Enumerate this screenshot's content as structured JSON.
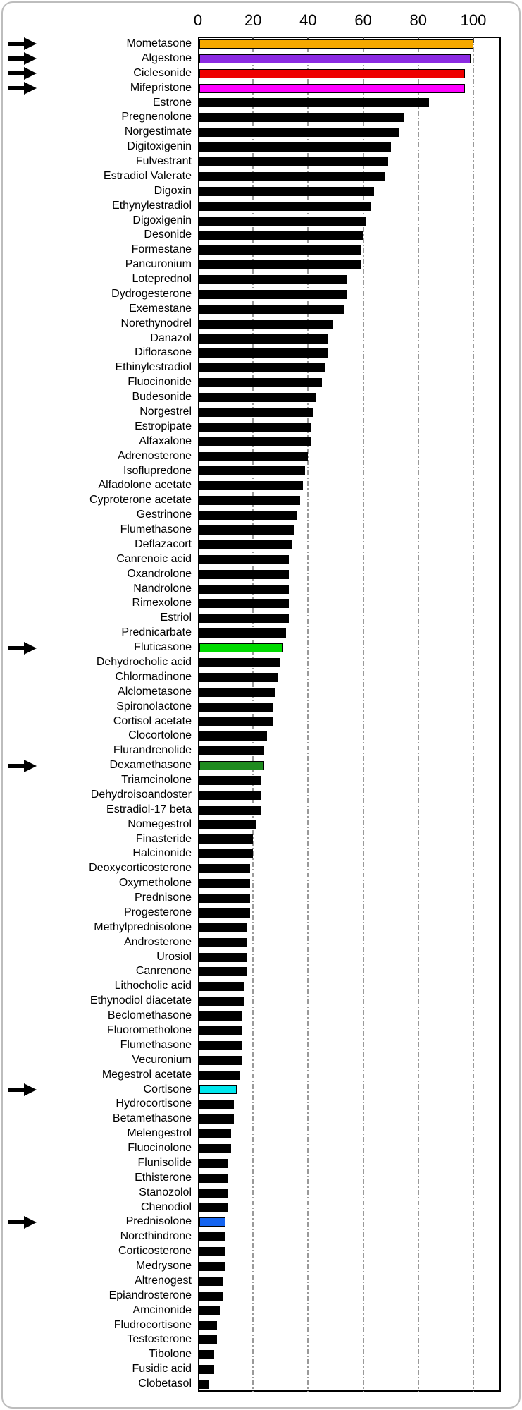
{
  "card": {
    "border_color": "#bdbdbd",
    "background": "#ffffff"
  },
  "chart_data": {
    "type": "bar",
    "orientation": "horizontal",
    "title": "",
    "xlabel": "",
    "ylabel": "",
    "x_axis": {
      "position": "top",
      "min": 0,
      "max": 110,
      "ticks": [
        0,
        20,
        40,
        60,
        80,
        100
      ],
      "gridlines": [
        20,
        40,
        60,
        80,
        100
      ],
      "grid_style": "dash-dot",
      "grid_color": "#9a9a9a"
    },
    "bar_default_color": "#000000",
    "arrow_color": "#000000",
    "highlight_note": "arrow=true rows are marked with a black arrow on the left",
    "items": [
      {
        "label": "Mometasone",
        "value": 100,
        "color": "#F5A800",
        "arrow": true
      },
      {
        "label": "Algestone",
        "value": 99,
        "color": "#8B2BE2",
        "arrow": true
      },
      {
        "label": "Ciclesonide",
        "value": 97,
        "color": "#EE0000",
        "arrow": true
      },
      {
        "label": "Mifepristone",
        "value": 97,
        "color": "#FF00FF",
        "arrow": true
      },
      {
        "label": "Estrone",
        "value": 84
      },
      {
        "label": "Pregnenolone",
        "value": 75
      },
      {
        "label": "Norgestimate",
        "value": 73
      },
      {
        "label": "Digitoxigenin",
        "value": 70
      },
      {
        "label": "Fulvestrant",
        "value": 69
      },
      {
        "label": "Estradiol Valerate",
        "value": 68
      },
      {
        "label": "Digoxin",
        "value": 64
      },
      {
        "label": "Ethynylestradiol",
        "value": 63
      },
      {
        "label": "Digoxigenin",
        "value": 61
      },
      {
        "label": "Desonide",
        "value": 60
      },
      {
        "label": "Formestane",
        "value": 59
      },
      {
        "label": "Pancuronium",
        "value": 59
      },
      {
        "label": "Loteprednol",
        "value": 54
      },
      {
        "label": "Dydrogesterone",
        "value": 54
      },
      {
        "label": "Exemestane",
        "value": 53
      },
      {
        "label": "Norethynodrel",
        "value": 49
      },
      {
        "label": "Danazol",
        "value": 47
      },
      {
        "label": "Diflorasone",
        "value": 47
      },
      {
        "label": "Ethinylestradiol",
        "value": 46
      },
      {
        "label": "Fluocinonide",
        "value": 45
      },
      {
        "label": "Budesonide",
        "value": 43
      },
      {
        "label": "Norgestrel",
        "value": 42
      },
      {
        "label": "Estropipate",
        "value": 41
      },
      {
        "label": "Alfaxalone",
        "value": 41
      },
      {
        "label": "Adrenosterone",
        "value": 40
      },
      {
        "label": "Isoflupredone",
        "value": 39
      },
      {
        "label": "Alfadolone acetate",
        "value": 38
      },
      {
        "label": "Cyproterone acetate",
        "value": 37
      },
      {
        "label": "Gestrinone",
        "value": 36
      },
      {
        "label": "Flumethasone",
        "value": 35
      },
      {
        "label": "Deflazacort",
        "value": 34
      },
      {
        "label": "Canrenoic acid",
        "value": 33
      },
      {
        "label": "Oxandrolone",
        "value": 33
      },
      {
        "label": "Nandrolone",
        "value": 33
      },
      {
        "label": "Rimexolone",
        "value": 33
      },
      {
        "label": "Estriol",
        "value": 33
      },
      {
        "label": "Prednicarbate",
        "value": 32
      },
      {
        "label": "Fluticasone",
        "value": 31,
        "color": "#00DB00",
        "arrow": true
      },
      {
        "label": "Dehydrocholic acid",
        "value": 30
      },
      {
        "label": "Chlormadinone",
        "value": 29
      },
      {
        "label": "Alclometasone",
        "value": 28
      },
      {
        "label": "Spironolactone",
        "value": 27
      },
      {
        "label": "Cortisol acetate",
        "value": 27
      },
      {
        "label": "Clocortolone",
        "value": 25
      },
      {
        "label": "Flurandrenolide",
        "value": 24
      },
      {
        "label": "Dexamethasone",
        "value": 24,
        "color": "#1E8B1E",
        "arrow": true
      },
      {
        "label": "Triamcinolone",
        "value": 23
      },
      {
        "label": "Dehydroisoandoster",
        "value": 23
      },
      {
        "label": "Estradiol-17 beta",
        "value": 23
      },
      {
        "label": "Nomegestrol",
        "value": 21
      },
      {
        "label": "Finasteride",
        "value": 20
      },
      {
        "label": "Halcinonide",
        "value": 20
      },
      {
        "label": "Deoxycorticosterone",
        "value": 19
      },
      {
        "label": "Oxymetholone",
        "value": 19
      },
      {
        "label": "Prednisone",
        "value": 19
      },
      {
        "label": "Progesterone",
        "value": 19
      },
      {
        "label": "Methylprednisolone",
        "value": 18
      },
      {
        "label": "Androsterone",
        "value": 18
      },
      {
        "label": "Urosiol",
        "value": 18
      },
      {
        "label": "Canrenone",
        "value": 18
      },
      {
        "label": "Lithocholic acid",
        "value": 17
      },
      {
        "label": "Ethynodiol diacetate",
        "value": 17
      },
      {
        "label": "Beclomethasone",
        "value": 16
      },
      {
        "label": "Fluorometholone",
        "value": 16
      },
      {
        "label": "Flumethasone",
        "value": 16
      },
      {
        "label": "Vecuronium",
        "value": 16
      },
      {
        "label": "Megestrol acetate",
        "value": 15
      },
      {
        "label": "Cortisone",
        "value": 14,
        "color": "#00E8EE",
        "arrow": true
      },
      {
        "label": "Hydrocortisone",
        "value": 13
      },
      {
        "label": "Betamethasone",
        "value": 13
      },
      {
        "label": "Melengestrol",
        "value": 12
      },
      {
        "label": "Fluocinolone",
        "value": 12
      },
      {
        "label": "Flunisolide",
        "value": 11
      },
      {
        "label": "Ethisterone",
        "value": 11
      },
      {
        "label": "Stanozolol",
        "value": 11
      },
      {
        "label": "Chenodiol",
        "value": 11
      },
      {
        "label": "Prednisolone",
        "value": 10,
        "color": "#1464F0",
        "arrow": true
      },
      {
        "label": "Norethindrone",
        "value": 10
      },
      {
        "label": "Corticosterone",
        "value": 10
      },
      {
        "label": "Medrysone",
        "value": 10
      },
      {
        "label": "Altrenogest",
        "value": 9
      },
      {
        "label": "Epiandrosterone",
        "value": 9
      },
      {
        "label": "Amcinonide",
        "value": 8
      },
      {
        "label": "Fludrocortisone",
        "value": 7
      },
      {
        "label": "Testosterone",
        "value": 7
      },
      {
        "label": "Tibolone",
        "value": 6
      },
      {
        "label": "Fusidic acid",
        "value": 6
      },
      {
        "label": "Clobetasol",
        "value": 4
      }
    ]
  }
}
